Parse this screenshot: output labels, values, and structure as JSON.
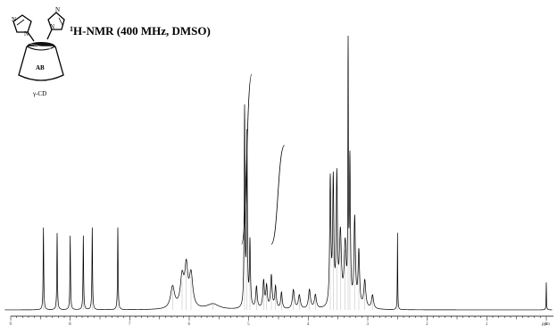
{
  "title": "1H-NMR (400 MHz, DMSO)",
  "title_sup": "1",
  "title_rest": "H-NMR (400 MHz, DMSO)",
  "molecule": {
    "ring_label": "AB",
    "name": "γ-CD"
  },
  "x_unit": "ppm",
  "chart_data": {
    "type": "line",
    "title": "1H-NMR (400 MHz, DMSO)",
    "xlabel": "",
    "ylabel": "",
    "xlim": [
      9,
      0
    ],
    "ylim": [
      0,
      100
    ],
    "axis_reversed": true,
    "x_ticks": [
      9,
      8,
      7,
      6,
      5,
      4,
      3,
      2,
      1,
      0
    ],
    "grid": false,
    "peaks": [
      {
        "x": 8.45,
        "h": 30,
        "w": 0.006
      },
      {
        "x": 8.22,
        "h": 28,
        "w": 0.006
      },
      {
        "x": 8.0,
        "h": 27,
        "w": 0.006
      },
      {
        "x": 7.78,
        "h": 27,
        "w": 0.006
      },
      {
        "x": 7.63,
        "h": 30,
        "w": 0.006
      },
      {
        "x": 7.2,
        "h": 30,
        "w": 0.006
      },
      {
        "x": 6.28,
        "h": 8,
        "w": 0.04
      },
      {
        "x": 6.12,
        "h": 11,
        "w": 0.035
      },
      {
        "x": 6.05,
        "h": 14,
        "w": 0.03
      },
      {
        "x": 5.97,
        "h": 12,
        "w": 0.035
      },
      {
        "x": 5.6,
        "h": 2,
        "w": 0.12
      },
      {
        "x": 5.07,
        "h": 72,
        "w": 0.008
      },
      {
        "x": 5.03,
        "h": 62,
        "w": 0.008
      },
      {
        "x": 4.98,
        "h": 24,
        "w": 0.01
      },
      {
        "x": 4.87,
        "h": 8,
        "w": 0.015
      },
      {
        "x": 4.75,
        "h": 10,
        "w": 0.015
      },
      {
        "x": 4.7,
        "h": 8,
        "w": 0.015
      },
      {
        "x": 4.62,
        "h": 12,
        "w": 0.015
      },
      {
        "x": 4.55,
        "h": 8,
        "w": 0.015
      },
      {
        "x": 4.45,
        "h": 6,
        "w": 0.015
      },
      {
        "x": 4.25,
        "h": 7,
        "w": 0.02
      },
      {
        "x": 4.15,
        "h": 5,
        "w": 0.02
      },
      {
        "x": 3.98,
        "h": 7,
        "w": 0.02
      },
      {
        "x": 3.88,
        "h": 5,
        "w": 0.02
      },
      {
        "x": 3.63,
        "h": 46,
        "w": 0.012
      },
      {
        "x": 3.58,
        "h": 45,
        "w": 0.012
      },
      {
        "x": 3.52,
        "h": 46,
        "w": 0.012
      },
      {
        "x": 3.46,
        "h": 26,
        "w": 0.02
      },
      {
        "x": 3.38,
        "h": 22,
        "w": 0.02
      },
      {
        "x": 3.33,
        "h": 100,
        "w": 0.005
      },
      {
        "x": 3.3,
        "h": 52,
        "w": 0.01
      },
      {
        "x": 3.22,
        "h": 32,
        "w": 0.015
      },
      {
        "x": 3.15,
        "h": 20,
        "w": 0.015
      },
      {
        "x": 3.05,
        "h": 10,
        "w": 0.02
      },
      {
        "x": 2.92,
        "h": 5,
        "w": 0.02
      },
      {
        "x": 2.5,
        "h": 28,
        "w": 0.004
      },
      {
        "x": 0.0,
        "h": 10,
        "w": 0.004
      }
    ],
    "integrals": [
      {
        "from": 5.12,
        "to": 4.95,
        "rise": 62
      },
      {
        "from": 4.62,
        "to": 4.4,
        "rise": 36
      }
    ]
  }
}
